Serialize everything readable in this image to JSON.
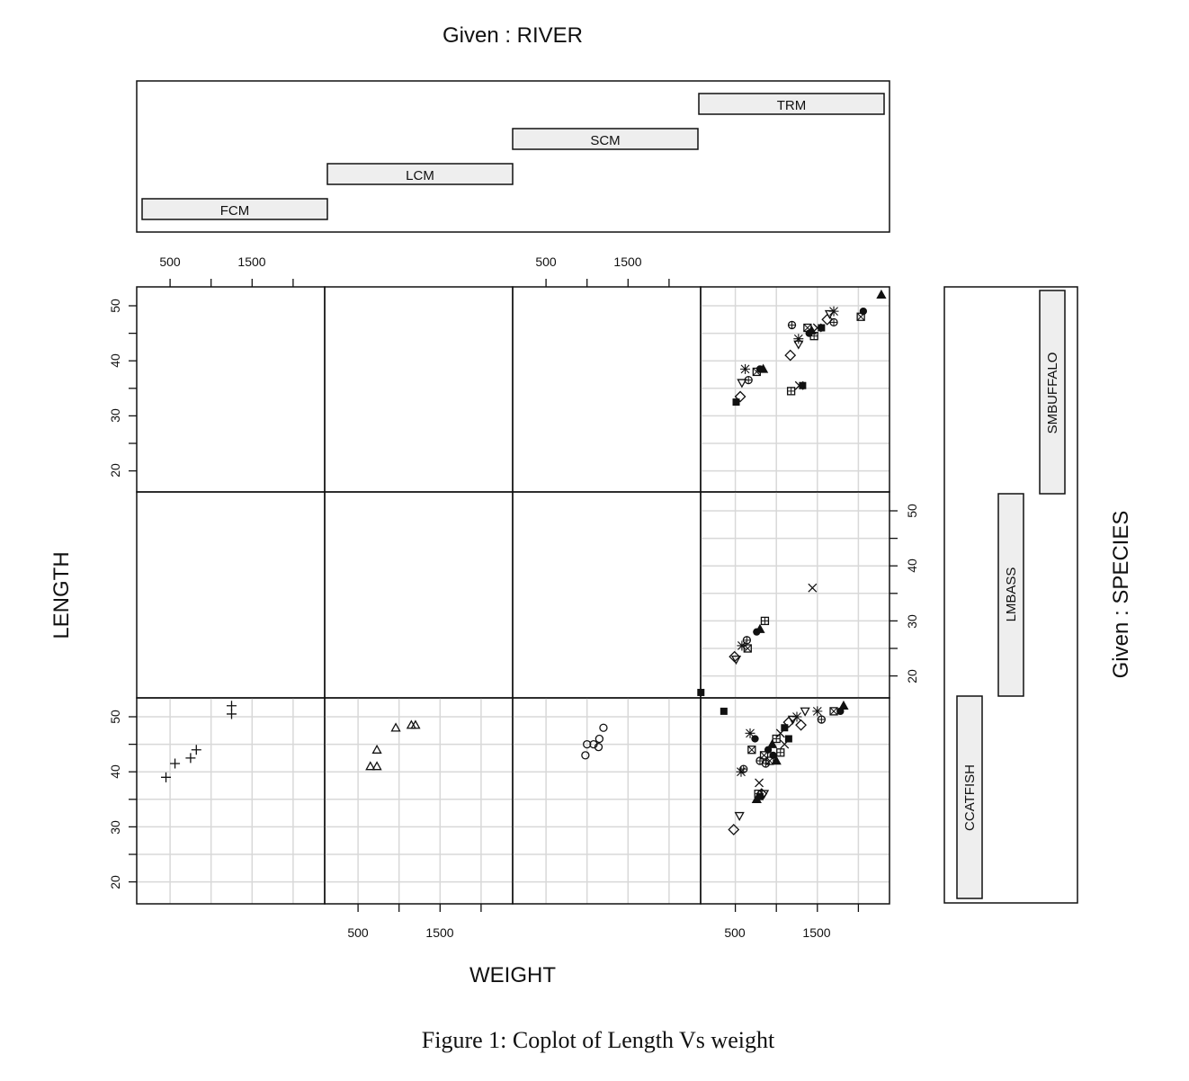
{
  "chart_data": {
    "type": "scatter",
    "subtype": "coplot",
    "title": "Given : RIVER",
    "caption": "Figure 1: Coplot of Length Vs weight",
    "xlabel": "WEIGHT",
    "ylabel": "LENGTH",
    "given_row_label": "Given : SPECIES",
    "given_col_label": "Given : RIVER",
    "rivers": [
      "FCM",
      "LCM",
      "SCM",
      "TRM"
    ],
    "species": [
      "CCATFISH",
      "LMBASS",
      "SMBUFFALO"
    ],
    "x_ticks": [
      500,
      1000,
      1500,
      2000
    ],
    "x_tick_labels": [
      "500",
      "",
      "1500",
      ""
    ],
    "y_ticks": [
      20,
      25,
      30,
      35,
      40,
      45,
      50
    ],
    "y_tick_labels": [
      "20",
      "",
      "30",
      "",
      "40",
      "",
      "50"
    ],
    "xlim": [
      -95,
      2200
    ],
    "ylim": [
      16,
      53.5
    ],
    "grid": true,
    "panels": [
      {
        "river": "FCM",
        "species": "CCATFISH",
        "symbol": "plus",
        "points": [
          [
            450,
            39
          ],
          [
            560,
            41.5
          ],
          [
            750,
            42.5
          ],
          [
            820,
            44
          ],
          [
            1250,
            50.5
          ],
          [
            1250,
            52
          ]
        ]
      },
      {
        "river": "LCM",
        "species": "CCATFISH",
        "symbol": "triangle",
        "points": [
          [
            650,
            41
          ],
          [
            730,
            41
          ],
          [
            730,
            44
          ],
          [
            960,
            48
          ],
          [
            1150,
            48.5
          ],
          [
            1200,
            48.5
          ]
        ]
      },
      {
        "river": "SCM",
        "species": "CCATFISH",
        "symbol": "circle",
        "points": [
          [
            980,
            43
          ],
          [
            1000,
            45
          ],
          [
            1080,
            45
          ],
          [
            1140,
            44.5
          ],
          [
            1150,
            46
          ],
          [
            1200,
            48
          ]
        ]
      },
      {
        "river": "TRM",
        "species": "CCATFISH",
        "symbol": "mixed",
        "points": [
          [
            360,
            51
          ],
          [
            480,
            29.5
          ],
          [
            550,
            32
          ],
          [
            570,
            40
          ],
          [
            600,
            40.5
          ],
          [
            700,
            44
          ],
          [
            740,
            46
          ],
          [
            760,
            35
          ],
          [
            780,
            36
          ],
          [
            790,
            38
          ],
          [
            800,
            35.5
          ],
          [
            820,
            36
          ],
          [
            850,
            36
          ],
          [
            680,
            47
          ],
          [
            800,
            42
          ],
          [
            850,
            43
          ],
          [
            900,
            44
          ],
          [
            950,
            45
          ],
          [
            1000,
            46
          ],
          [
            1050,
            47
          ],
          [
            1100,
            48
          ],
          [
            1150,
            49
          ],
          [
            1200,
            49.5
          ],
          [
            1250,
            50
          ],
          [
            870,
            41.5
          ],
          [
            920,
            42
          ],
          [
            960,
            43
          ],
          [
            1000,
            42
          ],
          [
            1050,
            43.5
          ],
          [
            1100,
            45
          ],
          [
            1150,
            46
          ],
          [
            1300,
            48.5
          ],
          [
            1350,
            51
          ],
          [
            1500,
            51
          ],
          [
            1550,
            49.5
          ],
          [
            1700,
            51
          ],
          [
            1780,
            51
          ],
          [
            1820,
            52
          ]
        ]
      },
      {
        "river": "TRM",
        "species": "LMBASS",
        "symbol": "mixed",
        "points": [
          [
            80,
            17
          ],
          [
            490,
            23.5
          ],
          [
            510,
            23
          ],
          [
            580,
            25.5
          ],
          [
            640,
            26.5
          ],
          [
            650,
            25
          ],
          [
            760,
            28
          ],
          [
            800,
            28.5
          ],
          [
            860,
            30
          ],
          [
            1440,
            36
          ]
        ]
      },
      {
        "river": "TRM",
        "species": "SMBUFFALO",
        "symbol": "mixed",
        "points": [
          [
            510,
            32.5
          ],
          [
            560,
            33.5
          ],
          [
            580,
            36
          ],
          [
            620,
            38.5
          ],
          [
            660,
            36.5
          ],
          [
            760,
            38
          ],
          [
            800,
            38.5
          ],
          [
            840,
            38.5
          ],
          [
            1180,
            34.5
          ],
          [
            1280,
            35.5
          ],
          [
            1320,
            35.5
          ],
          [
            1170,
            41
          ],
          [
            1270,
            43
          ],
          [
            1270,
            44
          ],
          [
            1190,
            46.5
          ],
          [
            1380,
            46
          ],
          [
            1400,
            45
          ],
          [
            1430,
            45.5
          ],
          [
            1460,
            44.5
          ],
          [
            1500,
            46
          ],
          [
            1550,
            46
          ],
          [
            1620,
            47.5
          ],
          [
            1650,
            48.5
          ],
          [
            1700,
            49
          ],
          [
            1700,
            47
          ],
          [
            2030,
            48
          ],
          [
            2060,
            49
          ],
          [
            2280,
            52
          ]
        ]
      }
    ]
  },
  "labels": {
    "title": "Given : RIVER",
    "species_title": "Given : SPECIES",
    "xlabel": "WEIGHT",
    "ylabel": "LENGTH",
    "caption": "Figure 1: Coplot of Length Vs weight",
    "rivers": [
      "FCM",
      "LCM",
      "SCM",
      "TRM"
    ],
    "species": [
      "CCATFISH",
      "LMBASS",
      "SMBUFFALO"
    ],
    "xtick_500": "500",
    "xtick_1500": "1500",
    "ytick_20": "20",
    "ytick_30": "30",
    "ytick_40": "40",
    "ytick_50": "50"
  },
  "colors": {
    "axis": "#111111",
    "grid": "#d8d8d8",
    "bar_fill": "#eeeeee",
    "background": "#ffffff"
  }
}
